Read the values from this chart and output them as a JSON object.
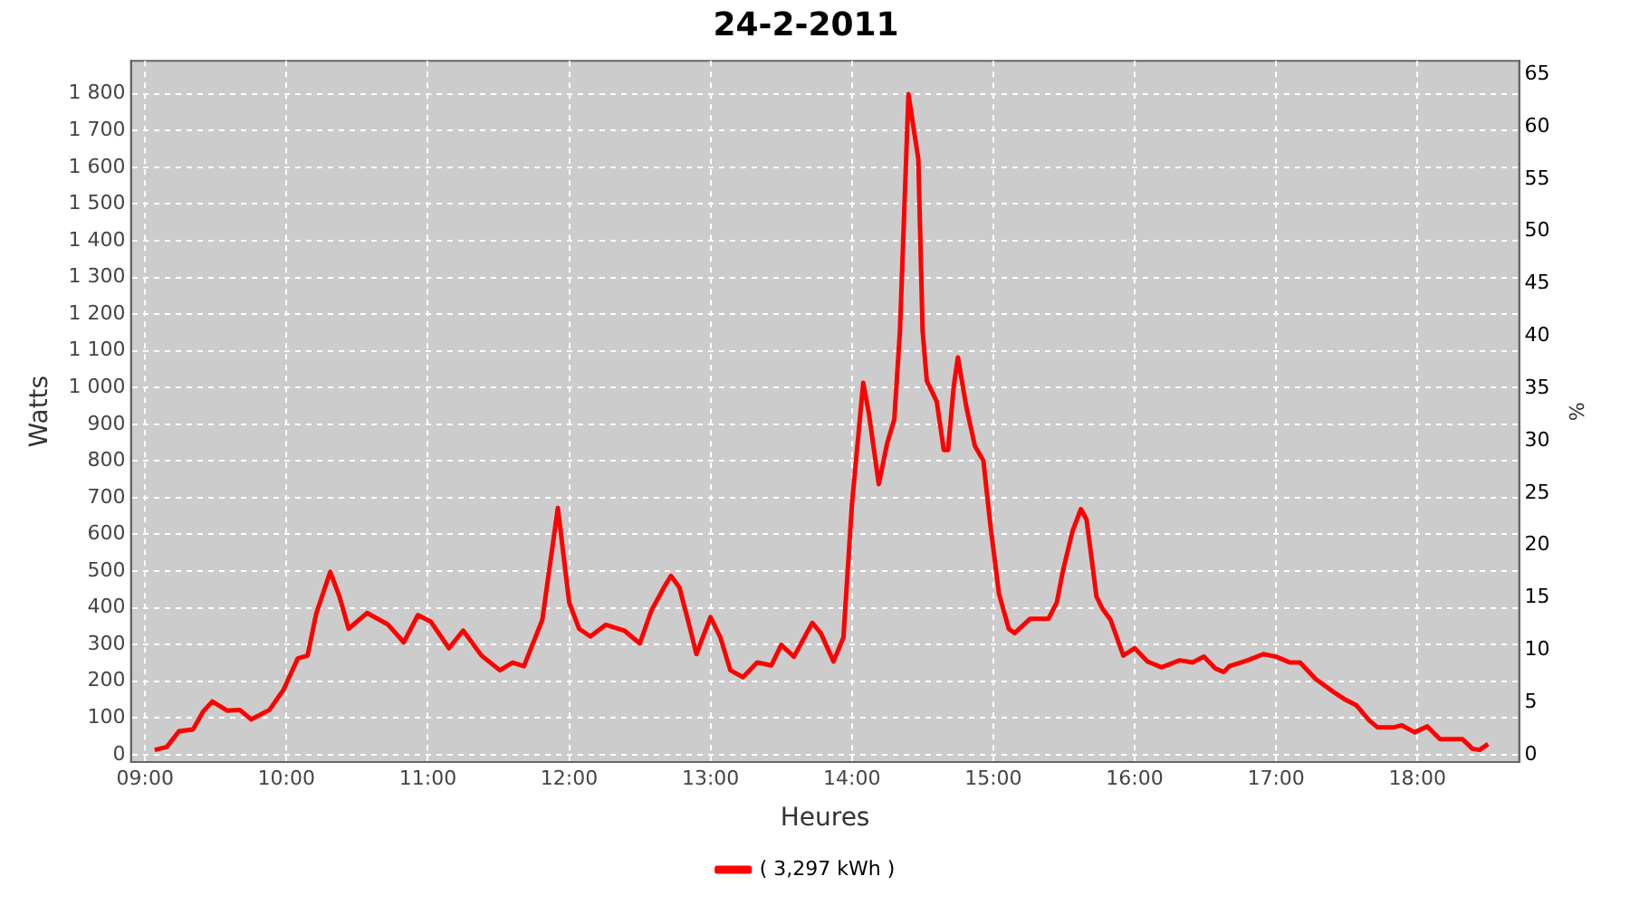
{
  "chart_data": {
    "type": "line",
    "title": "24-2-2011",
    "xlabel": "Heures",
    "ylabel": "Watts",
    "y2label": "%",
    "x": [
      9.068,
      9.154,
      9.24,
      9.34,
      9.41,
      9.476,
      9.58,
      9.67,
      9.75,
      9.88,
      9.98,
      10.08,
      10.15,
      10.21,
      10.31,
      10.375,
      10.44,
      10.57,
      10.72,
      10.83,
      10.93,
      11.02,
      11.15,
      11.25,
      11.38,
      11.51,
      11.6,
      11.68,
      11.81,
      11.92,
      12.0,
      12.07,
      12.15,
      12.26,
      12.39,
      12.5,
      12.58,
      12.67,
      12.72,
      12.78,
      12.84,
      12.9,
      13.0,
      13.07,
      13.14,
      13.23,
      13.33,
      13.43,
      13.5,
      13.59,
      13.72,
      13.78,
      13.87,
      13.94,
      14.0,
      14.08,
      14.12,
      14.19,
      14.25,
      14.3,
      14.34,
      14.4,
      14.47,
      14.5,
      14.53,
      14.6,
      14.65,
      14.68,
      14.72,
      14.75,
      14.81,
      14.87,
      14.93,
      14.98,
      15.04,
      15.11,
      15.15,
      15.26,
      15.39,
      15.45,
      15.49,
      15.56,
      15.62,
      15.66,
      15.73,
      15.77,
      15.83,
      15.92,
      16.0,
      16.09,
      16.19,
      16.32,
      16.41,
      16.49,
      16.57,
      16.63,
      16.67,
      16.8,
      16.91,
      17.0,
      17.1,
      17.17,
      17.28,
      17.41,
      17.49,
      17.57,
      17.66,
      17.72,
      17.83,
      17.89,
      17.98,
      18.07,
      18.16,
      18.32,
      18.39,
      18.44,
      18.5
    ],
    "series": [
      {
        "name": "( 3,297 kWh )",
        "color": "#ff0000",
        "values": [
          13,
          21,
          64,
          69,
          117,
          145,
          120,
          122,
          96,
          122,
          177,
          262,
          270,
          383,
          498,
          431,
          343,
          386,
          354,
          306,
          380,
          363,
          290,
          338,
          270,
          230,
          251,
          241,
          367,
          672,
          415,
          343,
          322,
          354,
          338,
          303,
          391,
          455,
          487,
          455,
          367,
          274,
          375,
          319,
          230,
          211,
          251,
          243,
          299,
          267,
          359,
          331,
          254,
          319,
          680,
          1013,
          930,
          737,
          849,
          913,
          1155,
          1799,
          1622,
          1155,
          1018,
          962,
          830,
          830,
          1002,
          1082,
          946,
          841,
          801,
          624,
          439,
          343,
          331,
          370,
          370,
          415,
          496,
          608,
          669,
          640,
          431,
          399,
          367,
          270,
          290,
          254,
          238,
          257,
          251,
          267,
          235,
          225,
          241,
          257,
          274,
          267,
          251,
          251,
          206,
          170,
          150,
          134,
          93,
          74,
          74,
          80,
          61,
          77,
          42,
          42,
          16,
          13,
          29
        ]
      }
    ],
    "xlim": [
      8.9,
      18.72
    ],
    "xticks": [
      {
        "value": 9,
        "label": "09:00"
      },
      {
        "value": 10,
        "label": "10:00"
      },
      {
        "value": 11,
        "label": "11:00"
      },
      {
        "value": 12,
        "label": "12:00"
      },
      {
        "value": 13,
        "label": "13:00"
      },
      {
        "value": 14,
        "label": "14:00"
      },
      {
        "value": 15,
        "label": "15:00"
      },
      {
        "value": 16,
        "label": "16:00"
      },
      {
        "value": 17,
        "label": "17:00"
      },
      {
        "value": 18,
        "label": "18:00"
      }
    ],
    "ylim": [
      -20,
      1890
    ],
    "yticks": [
      0,
      100,
      200,
      300,
      400,
      500,
      600,
      700,
      800,
      900,
      {
        "value": 1000,
        "label": "1 000"
      },
      {
        "value": 1100,
        "label": "1 100"
      },
      {
        "value": 1200,
        "label": "1 200"
      },
      {
        "value": 1300,
        "label": "1 300"
      },
      {
        "value": 1400,
        "label": "1 400"
      },
      {
        "value": 1500,
        "label": "1 500"
      },
      {
        "value": 1600,
        "label": "1 600"
      },
      {
        "value": 1700,
        "label": "1 700"
      },
      {
        "value": 1800,
        "label": "1 800"
      }
    ],
    "y2lim": [
      -0.7,
      66.3
    ],
    "y2ticks": [
      0,
      5,
      10,
      15,
      20,
      25,
      30,
      35,
      40,
      45,
      50,
      55,
      60,
      65
    ],
    "grid": true,
    "legend": "bottom",
    "marker": "none",
    "line_style": "solid"
  }
}
